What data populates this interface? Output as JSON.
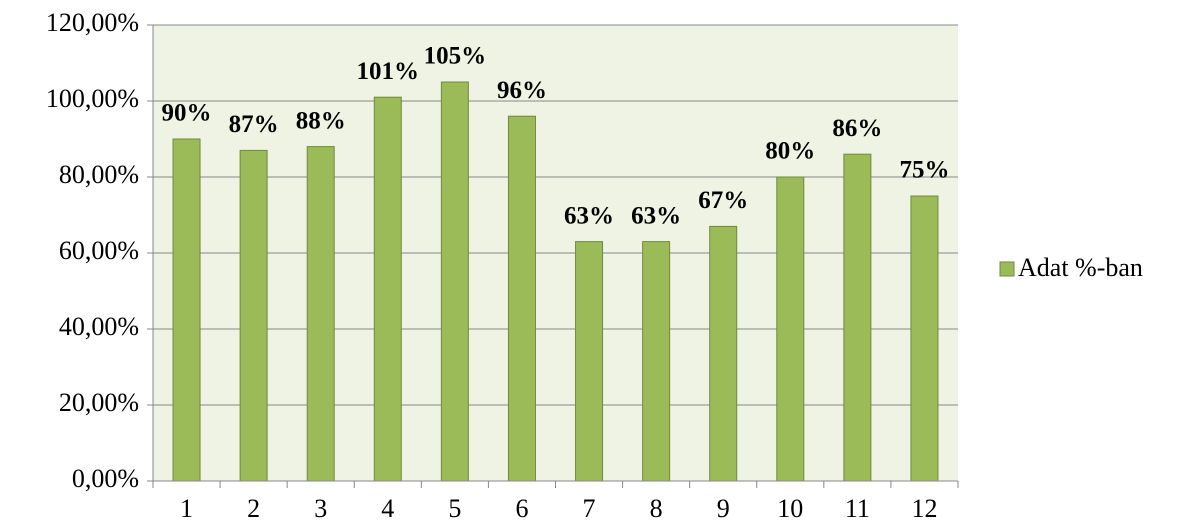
{
  "chart_data": {
    "type": "bar",
    "categories": [
      "1",
      "2",
      "3",
      "4",
      "5",
      "6",
      "7",
      "8",
      "9",
      "10",
      "11",
      "12"
    ],
    "series": [
      {
        "name": "Adat %-ban",
        "color": "#9bbb59",
        "values": [
          90,
          87,
          88,
          101,
          105,
          96,
          63,
          63,
          67,
          80,
          86,
          75
        ],
        "value_labels": [
          "90%",
          "87%",
          "88%",
          "101%",
          "105%",
          "96%",
          "63%",
          "63%",
          "67%",
          "80%",
          "86%",
          "75%"
        ]
      }
    ],
    "ylim": [
      0,
      120
    ],
    "yticks": [
      {
        "value": 0,
        "label": "0,00%"
      },
      {
        "value": 20,
        "label": "20,00%"
      },
      {
        "value": 40,
        "label": "40,00%"
      },
      {
        "value": 60,
        "label": "60,00%"
      },
      {
        "value": 80,
        "label": "80,00%"
      },
      {
        "value": 100,
        "label": "100,00%"
      },
      {
        "value": 120,
        "label": "120,00%"
      }
    ],
    "grid": true,
    "legend": "right"
  }
}
